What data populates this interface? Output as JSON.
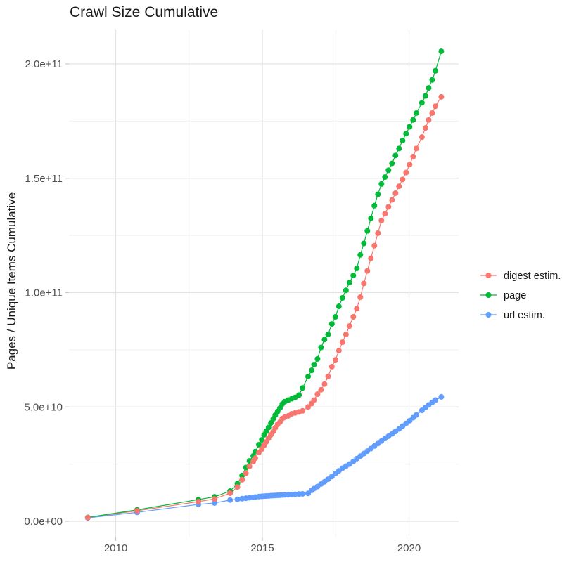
{
  "chart_data": {
    "type": "line",
    "title": "Crawl Size Cumulative",
    "xlabel": "",
    "ylabel": "Pages / Unique Items Cumulative",
    "value_unit": "1e9 (values below are billions; axis shows scientific notation)",
    "xlim": [
      2008.4,
      2021.7
    ],
    "ylim_e9": [
      0,
      215
    ],
    "grid": "major and minor, light grey on white",
    "legend_position": "right",
    "x_ticks": [
      {
        "value": 2010,
        "label": "2010"
      },
      {
        "value": 2015,
        "label": "2015"
      },
      {
        "value": 2020,
        "label": "2020"
      }
    ],
    "x_minor_ticks": [
      2012.5,
      2017.5
    ],
    "y_ticks": [
      {
        "value_e9": 0,
        "label": "0.0e+00"
      },
      {
        "value_e9": 50,
        "label": "5.0e+10"
      },
      {
        "value_e9": 100,
        "label": "1.0e+11"
      },
      {
        "value_e9": 150,
        "label": "1.5e+11"
      },
      {
        "value_e9": 200,
        "label": "2.0e+11"
      }
    ],
    "y_minor_ticks_e9": [
      25,
      75,
      125,
      175
    ],
    "x": [
      2009.05,
      2010.73,
      2012.82,
      2013.37,
      2013.9,
      2014.15,
      2014.31,
      2014.44,
      2014.56,
      2014.69,
      2014.76,
      2014.88,
      2014.98,
      2015.06,
      2015.13,
      2015.21,
      2015.29,
      2015.37,
      2015.44,
      2015.52,
      2015.6,
      2015.68,
      2015.76,
      2015.88,
      2016.0,
      2016.12,
      2016.25,
      2016.37,
      2016.56,
      2016.68,
      2016.76,
      2016.88,
      2017.0,
      2017.12,
      2017.24,
      2017.37,
      2017.49,
      2017.61,
      2017.73,
      2017.85,
      2017.97,
      2018.1,
      2018.22,
      2018.34,
      2018.46,
      2018.58,
      2018.7,
      2018.82,
      2018.94,
      2019.06,
      2019.18,
      2019.3,
      2019.42,
      2019.54,
      2019.66,
      2019.78,
      2019.9,
      2020.02,
      2020.14,
      2020.25,
      2020.44,
      2020.56,
      2020.67,
      2020.79,
      2020.9,
      2021.1
    ],
    "series": [
      {
        "name": "digest estim.",
        "color": "#F8766D",
        "values_e9": [
          1.6,
          4.6,
          8.6,
          9.8,
          12.3,
          15.0,
          18.2,
          21.0,
          24.0,
          26.1,
          27.6,
          30.1,
          31.6,
          33.2,
          34.7,
          36.3,
          37.8,
          39.3,
          40.9,
          42.4,
          43.4,
          44.9,
          45.5,
          46.1,
          47.0,
          47.4,
          47.8,
          48.3,
          50.0,
          51.5,
          53.0,
          55.6,
          57.5,
          60.0,
          63.3,
          67.6,
          70.6,
          74.6,
          78.3,
          81.7,
          85.4,
          89.4,
          93.0,
          98.0,
          104.0,
          109.5,
          115.0,
          120.5,
          126.0,
          131.5,
          134.5,
          137.5,
          140.5,
          143.5,
          146.5,
          149.5,
          152.5,
          156.0,
          159.5,
          163.0,
          168.0,
          172.0,
          175.5,
          178.5,
          181.5,
          185.6
        ]
      },
      {
        "name": "page",
        "color": "#00BA38",
        "values_e9": [
          1.7,
          5.0,
          9.5,
          10.7,
          13.2,
          16.5,
          20.0,
          23.5,
          26.4,
          28.6,
          30.5,
          33.5,
          35.6,
          37.8,
          39.3,
          41.0,
          43.0,
          44.8,
          46.4,
          48.0,
          49.5,
          51.3,
          52.3,
          53.0,
          53.6,
          54.2,
          55.2,
          58.3,
          63.3,
          66.0,
          68.5,
          71.0,
          76.0,
          79.5,
          81.7,
          86.3,
          89.4,
          94.0,
          97.7,
          101.0,
          104.4,
          107.5,
          110.6,
          116.5,
          121.5,
          127.0,
          132.5,
          138.0,
          143.0,
          147.5,
          150.5,
          153.5,
          156.5,
          160.0,
          163.0,
          166.5,
          169.5,
          172.5,
          175.5,
          178.5,
          183.0,
          186.0,
          189.5,
          193.0,
          197.0,
          205.5
        ]
      },
      {
        "name": "url estim.",
        "color": "#619CFF",
        "values_e9": [
          1.5,
          3.9,
          7.4,
          8.0,
          9.3,
          9.6,
          9.9,
          10.1,
          10.3,
          10.5,
          10.6,
          10.8,
          10.9,
          11.0,
          11.05,
          11.1,
          11.2,
          11.25,
          11.3,
          11.35,
          11.4,
          11.5,
          11.55,
          11.6,
          11.7,
          11.8,
          11.9,
          12.0,
          12.2,
          13.5,
          14.3,
          15.2,
          16.3,
          17.3,
          18.4,
          19.6,
          20.9,
          22.1,
          23.2,
          24.1,
          25.0,
          26.2,
          27.4,
          28.5,
          29.6,
          30.7,
          31.8,
          32.9,
          34.0,
          35.1,
          36.2,
          37.2,
          38.2,
          39.3,
          40.4,
          41.6,
          42.8,
          44.0,
          45.3,
          46.5,
          48.5,
          49.8,
          50.9,
          52.0,
          53.0,
          54.4
        ]
      }
    ],
    "colors": {
      "grid_major": "#e3e3e3",
      "grid_minor": "#f0f0f0",
      "tick_mark": "#c9c9c9",
      "tick_label": "#4d4d4d",
      "text": "#1a1a1a"
    }
  }
}
